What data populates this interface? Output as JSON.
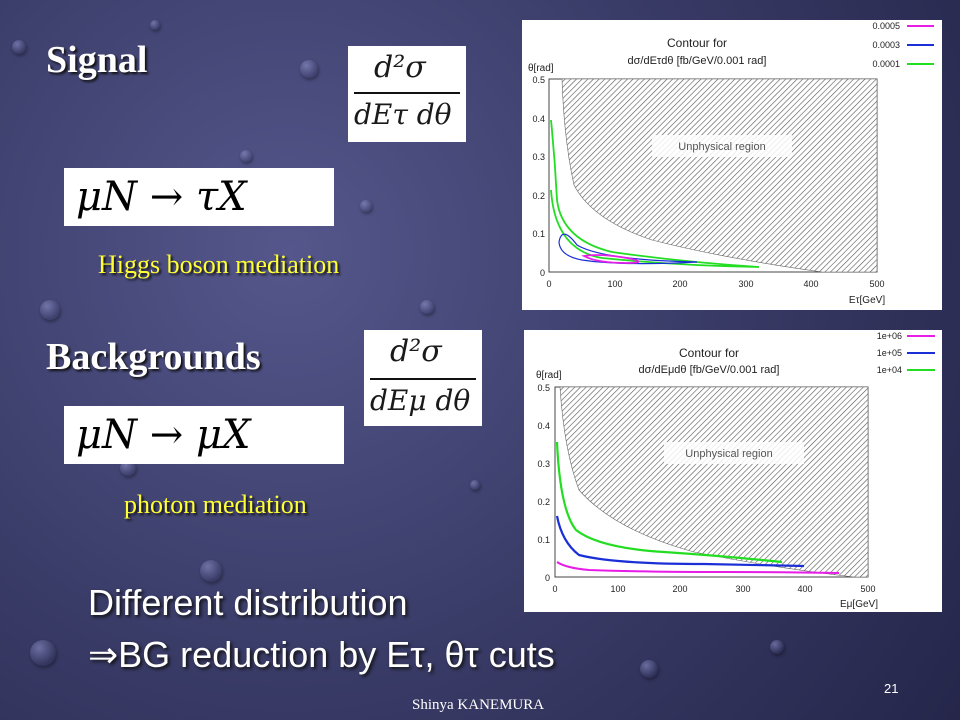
{
  "slide": {
    "number": "21",
    "author": "Shinya KANEMURA"
  },
  "signal": {
    "title": "Signal",
    "formula_num": "d²σ",
    "formula_den": "dEτ dθ",
    "process": "μN → τX",
    "mediation": "Higgs boson mediation"
  },
  "backgrounds": {
    "title": "Backgrounds",
    "formula_num": "d²σ",
    "formula_den": "dEμ dθ",
    "process": "μN → μX",
    "mediation": "photon mediation"
  },
  "conclusion": {
    "line1": "Different distribution",
    "line2": "⇒BG reduction by Eτ, θτ cuts"
  },
  "chart_data": [
    {
      "type": "line",
      "title": "Contour for",
      "subtitle": "dσ/dEτdθ [fb/GeV/0.001 rad]",
      "xlabel": "Eτ[GeV]",
      "ylabel": "θ[rad]",
      "xlim": [
        0,
        500
      ],
      "ylim": [
        0,
        0.5
      ],
      "xticks": [
        "0",
        "100",
        "200",
        "300",
        "400",
        "500"
      ],
      "yticks": [
        "0",
        "0.1",
        "0.2",
        "0.3",
        "0.4",
        "0.5"
      ],
      "annotation": "Unphysical region",
      "legend_position": "top-right",
      "grid": false,
      "series": [
        {
          "name": "0.0005",
          "color": "#e61ee6"
        },
        {
          "name": "0.0003",
          "color": "#1a2fd6"
        },
        {
          "name": "0.0001",
          "color": "#22dd22"
        }
      ]
    },
    {
      "type": "line",
      "title": "Contour for",
      "subtitle": "dσ/dEμdθ [fb/GeV/0.001 rad]",
      "xlabel": "Eμ[GeV]",
      "ylabel": "θ[rad]",
      "xlim": [
        0,
        500
      ],
      "ylim": [
        0,
        0.5
      ],
      "xticks": [
        "0",
        "100",
        "200",
        "300",
        "400",
        "500"
      ],
      "yticks": [
        "0",
        "0.1",
        "0.2",
        "0.3",
        "0.4",
        "0.5"
      ],
      "annotation": "Unphysical region",
      "legend_position": "top-right",
      "grid": false,
      "series": [
        {
          "name": "1e+06",
          "color": "#e61ee6"
        },
        {
          "name": "1e+05",
          "color": "#1a2fd6"
        },
        {
          "name": "1e+04",
          "color": "#22dd22"
        }
      ]
    }
  ]
}
